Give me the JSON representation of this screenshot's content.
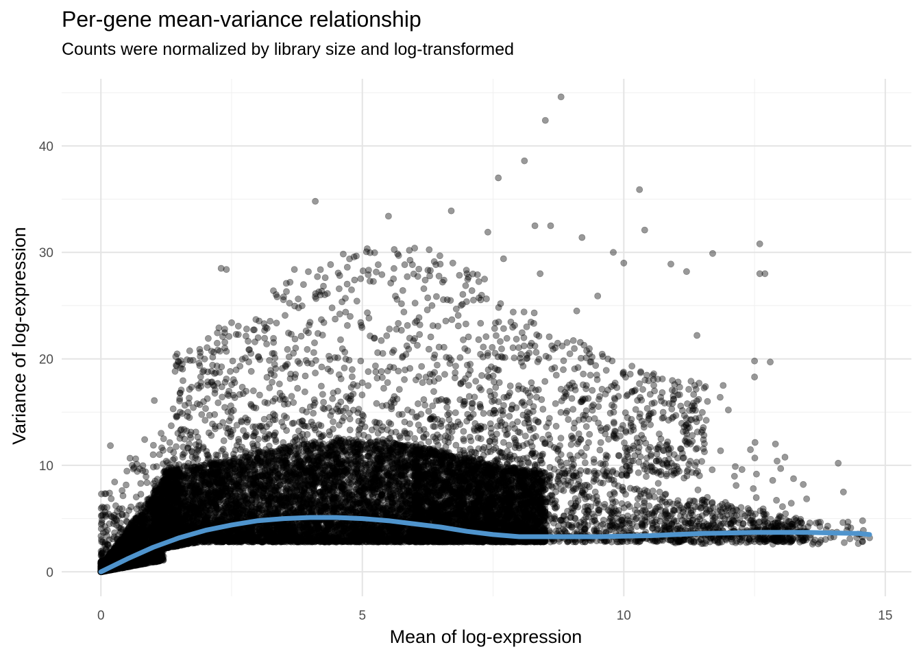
{
  "chart_data": {
    "type": "scatter",
    "title": "Per-gene mean-variance relationship",
    "subtitle": "Counts were normalized by library size and log-transformed",
    "xlabel": "Mean of log-expression",
    "ylabel": "Variance of log-expression",
    "xlim": [
      -0.75,
      15.5
    ],
    "ylim": [
      -2.3,
      46.3
    ],
    "x_ticks": [
      0,
      5,
      10,
      15
    ],
    "y_ticks": [
      0,
      10,
      20,
      30,
      40
    ],
    "grid": true,
    "point_color": "#000000",
    "point_opacity": 0.4,
    "trend_color": "#4f94cd",
    "trend": {
      "name": "",
      "x": [
        0,
        0.5,
        1,
        1.5,
        2,
        2.5,
        3,
        3.5,
        4,
        4.5,
        5,
        5.5,
        6,
        6.5,
        7,
        7.5,
        8,
        8.5,
        9,
        9.5,
        10,
        10.5,
        11,
        11.5,
        12,
        12.5,
        13,
        13.5,
        14,
        14.5,
        14.7
      ],
      "y": [
        0,
        1.2,
        2.3,
        3.2,
        3.9,
        4.4,
        4.8,
        5.0,
        5.1,
        5.1,
        5.0,
        4.8,
        4.5,
        4.2,
        3.8,
        3.5,
        3.3,
        3.3,
        3.3,
        3.3,
        3.35,
        3.4,
        3.5,
        3.6,
        3.65,
        3.7,
        3.7,
        3.7,
        3.65,
        3.6,
        3.5
      ]
    },
    "outliers": {
      "x": [
        8.8,
        8.5,
        8.1,
        7.6,
        4.1,
        5.5,
        6.7,
        10.3,
        10.4,
        12.6,
        12.7,
        12.6,
        11.7,
        7.4,
        8.3,
        8.6,
        9.2,
        9.8,
        10.0,
        10.9,
        11.2,
        3.7,
        3.3,
        2.3,
        2.4,
        6.0,
        5.9,
        6.3,
        7.0,
        7.7,
        8.4,
        12.5,
        12.8,
        12.5,
        11.9,
        12.0,
        12.9,
        14.1,
        14.2,
        14.7,
        13.9,
        13.3,
        13.0,
        12.7,
        11.4,
        11.6,
        9.5,
        9.1,
        4.2,
        2.4,
        1.9,
        2.2,
        2.5,
        0.6,
        0.8,
        1.2,
        1.0
      ],
      "y": [
        44.6,
        42.4,
        38.6,
        37.0,
        34.8,
        33.4,
        33.9,
        35.9,
        32.1,
        30.8,
        28.0,
        28.0,
        29.9,
        31.9,
        32.5,
        32.5,
        31.4,
        30.0,
        29.0,
        28.9,
        28.2,
        28.4,
        26.4,
        28.5,
        28.4,
        30.4,
        30.2,
        28.3,
        28.0,
        29.4,
        28.0,
        19.8,
        19.7,
        18.3,
        17.5,
        15.2,
        12.0,
        10.2,
        7.5,
        3.2,
        4.3,
        4.8,
        9.7,
        4.5,
        22.2,
        16.0,
        25.9,
        24.5,
        26.0,
        20.7,
        20.6,
        18.7,
        23.4,
        10.0,
        9.5,
        12.5,
        11.0
      ]
    },
    "cloud": {
      "seed": 20240611,
      "n": 14000
    }
  }
}
